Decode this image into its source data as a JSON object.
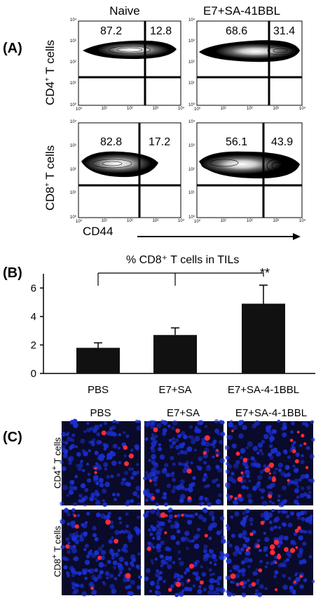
{
  "panelA": {
    "label": "(A)",
    "columns": [
      "Naive",
      "E7+SA-41BBL"
    ],
    "row_labels": [
      {
        "main": "CD4",
        "sup": "+",
        "rest": " T cells"
      },
      {
        "main": "CD8",
        "sup": "+",
        "rest": " T cells"
      }
    ],
    "plots": [
      {
        "row": 0,
        "col": 0,
        "left": "87.2",
        "right": "12.8"
      },
      {
        "row": 0,
        "col": 1,
        "left": "68.6",
        "right": "31.4"
      },
      {
        "row": 1,
        "col": 0,
        "left": "82.8",
        "right": "17.2"
      },
      {
        "row": 1,
        "col": 1,
        "left": "56.1",
        "right": "43.9"
      }
    ],
    "x_ticks": [
      "10⁰",
      "10¹",
      "10²",
      "10³",
      "10⁴"
    ],
    "y_ticks": [
      "10⁰",
      "10¹",
      "10²",
      "10³",
      "10⁴"
    ],
    "xlabel": "CD44"
  },
  "panelB": {
    "label": "(B)",
    "significance": "**",
    "chart_data": {
      "type": "bar",
      "title": "% CD8⁺ T cells in TILs",
      "categories": [
        "PBS",
        "E7+SA",
        "E7+SA-4-1BBL"
      ],
      "values": [
        1.8,
        2.7,
        4.9
      ],
      "errors": [
        0.35,
        0.5,
        1.3
      ],
      "yticks": [
        "0",
        "2",
        "4",
        "6"
      ],
      "ylim": [
        0,
        7
      ],
      "colors": {
        "bar": "#111111"
      }
    }
  },
  "panelC": {
    "label": "(C)",
    "columns": [
      "PBS",
      "E7+SA",
      "E7+SA-4-1BBL"
    ],
    "row_labels": [
      {
        "main": "CD4",
        "sup": "+",
        "rest": " T cells"
      },
      {
        "main": "CD8",
        "sup": "+",
        "rest": " T cells"
      }
    ],
    "colors": {
      "nuclei": "#1a2fd0",
      "cells": "#ff2a3a",
      "background": "#0a0a2a"
    }
  }
}
